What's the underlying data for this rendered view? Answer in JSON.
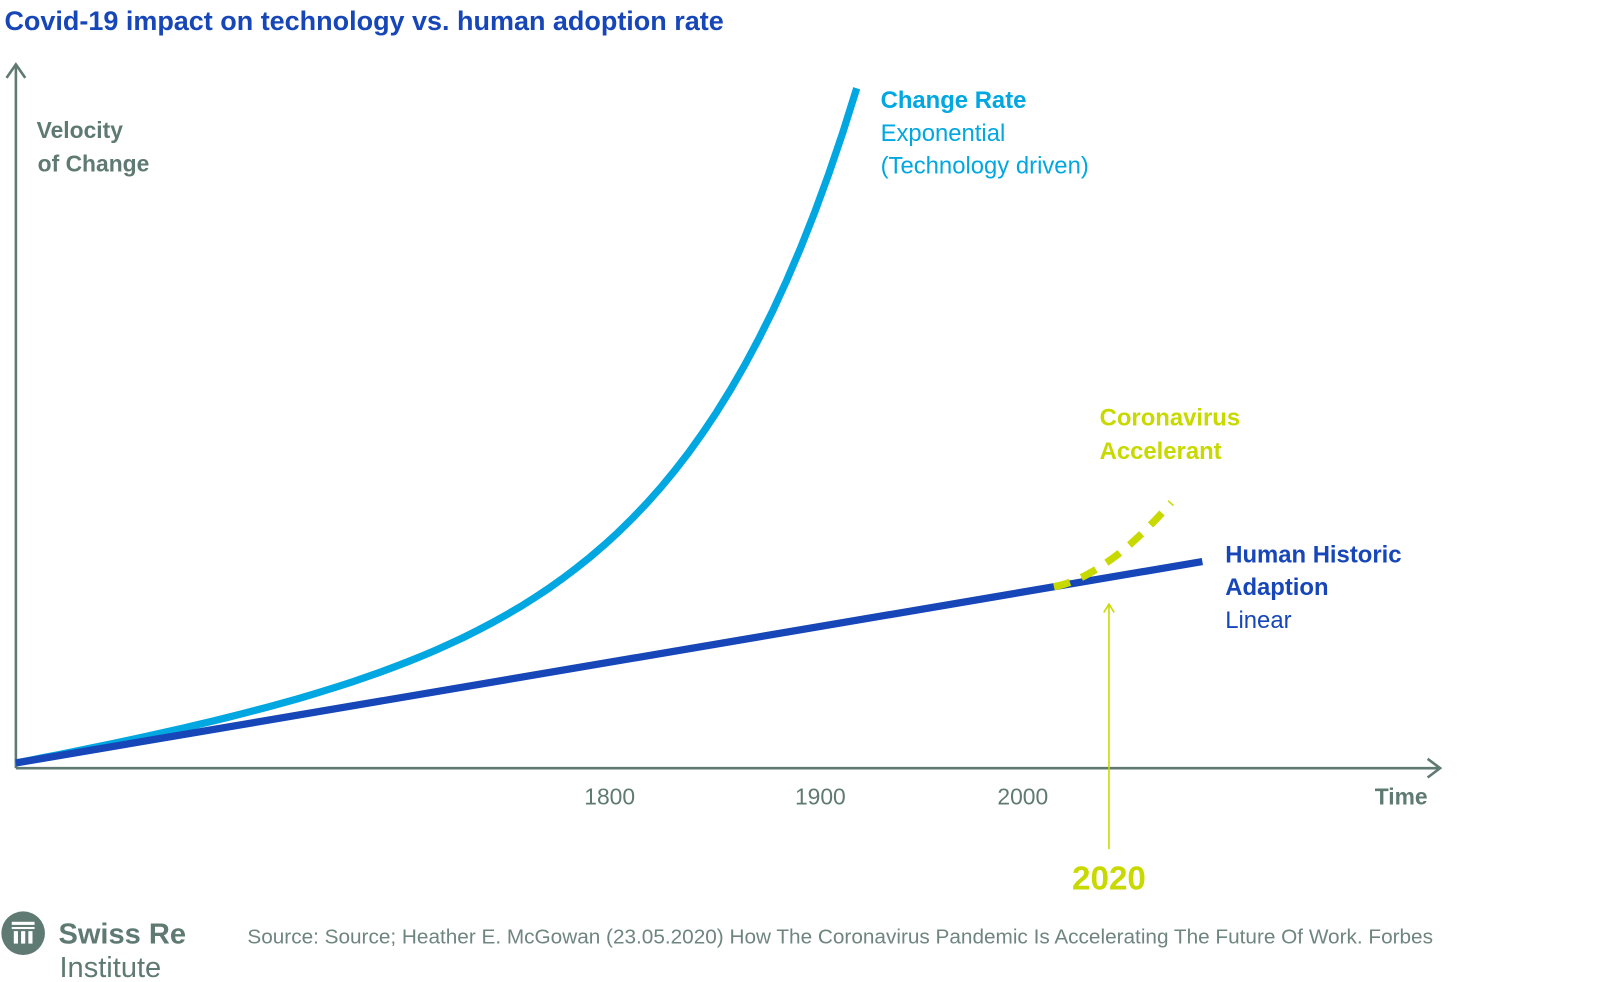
{
  "chart_data": {
    "type": "line",
    "title": "Covid-19 impact on technology vs. human adoption rate",
    "ylabel": [
      "Velocity",
      "of Change"
    ],
    "xlabel": "Time",
    "x_ticks": [
      "1800",
      "1900",
      "2000"
    ],
    "highlight": {
      "label": "2020"
    },
    "series": [
      {
        "name": "Change Rate",
        "sublabel": [
          "Exponential",
          "(Technology driven)"
        ],
        "shape": "exponential",
        "color": "#00a7e1"
      },
      {
        "name": "Human Historic Adaption",
        "name_lines": [
          "Human Historic",
          "Adaption"
        ],
        "sublabel": [
          "Linear"
        ],
        "shape": "linear",
        "color": "#1646b7"
      },
      {
        "name": "Coronavirus Accelerant",
        "name_lines": [
          "Coronavirus",
          "Accelerant"
        ],
        "shape": "dashed-accelerating",
        "color": "#c8d900"
      }
    ],
    "axis_color": "#5f7a72",
    "grid": false
  },
  "footer": {
    "brand": "Swiss Re",
    "brand_sub": "Institute",
    "source": "Source: Source; Heather E. McGowan (23.05.2020) How The Coronavirus Pandemic Is Accelerating The Future Of Work. Forbes"
  }
}
